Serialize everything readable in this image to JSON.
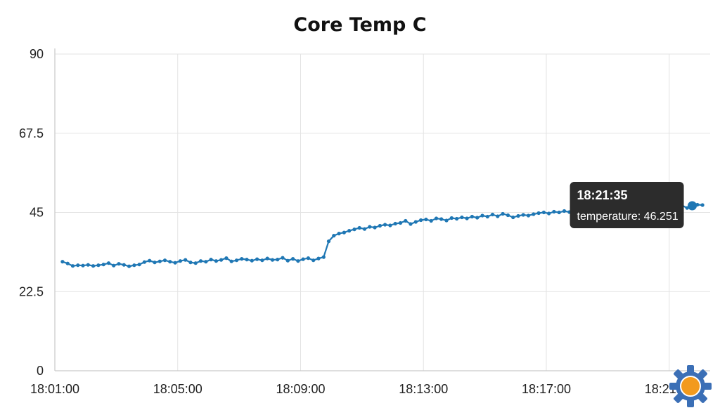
{
  "chart_data": {
    "type": "line",
    "title": "Core Temp C",
    "xlabel": "",
    "ylabel": "",
    "x_ticks": [
      "18:01:00",
      "18:05:00",
      "18:09:00",
      "18:13:00",
      "18:17:00",
      "18:21:00"
    ],
    "y_ticks": [
      "0",
      "22.5",
      "45",
      "67.5",
      "90"
    ],
    "xlim": [
      "18:01:00",
      "18:22:20"
    ],
    "ylim": [
      0,
      90
    ],
    "grid": true,
    "series_color": "#1f77b4",
    "series": [
      {
        "points": [
          [
            "18:01:15",
            31.0
          ],
          [
            "18:01:25",
            30.5
          ],
          [
            "18:01:35",
            29.8
          ],
          [
            "18:01:45",
            30.0
          ],
          [
            "18:01:55",
            29.9
          ],
          [
            "18:02:05",
            30.1
          ],
          [
            "18:02:15",
            29.8
          ],
          [
            "18:02:25",
            30.0
          ],
          [
            "18:02:35",
            30.2
          ],
          [
            "18:02:45",
            30.6
          ],
          [
            "18:02:55",
            29.9
          ],
          [
            "18:03:05",
            30.4
          ],
          [
            "18:03:15",
            30.1
          ],
          [
            "18:03:25",
            29.7
          ],
          [
            "18:03:35",
            30.0
          ],
          [
            "18:03:45",
            30.2
          ],
          [
            "18:03:55",
            30.9
          ],
          [
            "18:04:05",
            31.3
          ],
          [
            "18:04:15",
            30.8
          ],
          [
            "18:04:25",
            31.1
          ],
          [
            "18:04:35",
            31.4
          ],
          [
            "18:04:45",
            31.0
          ],
          [
            "18:04:55",
            30.7
          ],
          [
            "18:05:05",
            31.2
          ],
          [
            "18:05:15",
            31.5
          ],
          [
            "18:05:25",
            30.8
          ],
          [
            "18:05:35",
            30.6
          ],
          [
            "18:05:45",
            31.2
          ],
          [
            "18:05:55",
            31.0
          ],
          [
            "18:06:05",
            31.6
          ],
          [
            "18:06:15",
            31.2
          ],
          [
            "18:06:25",
            31.5
          ],
          [
            "18:06:35",
            32.0
          ],
          [
            "18:06:45",
            31.1
          ],
          [
            "18:06:55",
            31.4
          ],
          [
            "18:07:05",
            31.8
          ],
          [
            "18:07:15",
            31.6
          ],
          [
            "18:07:25",
            31.3
          ],
          [
            "18:07:35",
            31.7
          ],
          [
            "18:07:45",
            31.4
          ],
          [
            "18:07:55",
            31.9
          ],
          [
            "18:08:05",
            31.5
          ],
          [
            "18:08:15",
            31.6
          ],
          [
            "18:08:25",
            32.1
          ],
          [
            "18:08:35",
            31.3
          ],
          [
            "18:08:45",
            31.8
          ],
          [
            "18:08:55",
            31.2
          ],
          [
            "18:09:05",
            31.7
          ],
          [
            "18:09:15",
            32.0
          ],
          [
            "18:09:25",
            31.4
          ],
          [
            "18:09:35",
            31.9
          ],
          [
            "18:09:45",
            32.3
          ],
          [
            "18:09:55",
            36.8
          ],
          [
            "18:10:05",
            38.4
          ],
          [
            "18:10:15",
            39.0
          ],
          [
            "18:10:25",
            39.3
          ],
          [
            "18:10:35",
            39.8
          ],
          [
            "18:10:45",
            40.2
          ],
          [
            "18:10:55",
            40.6
          ],
          [
            "18:11:05",
            40.3
          ],
          [
            "18:11:15",
            40.9
          ],
          [
            "18:11:25",
            40.7
          ],
          [
            "18:11:35",
            41.2
          ],
          [
            "18:11:45",
            41.5
          ],
          [
            "18:11:55",
            41.3
          ],
          [
            "18:12:05",
            41.8
          ],
          [
            "18:12:15",
            42.0
          ],
          [
            "18:12:25",
            42.6
          ],
          [
            "18:12:35",
            41.7
          ],
          [
            "18:12:45",
            42.3
          ],
          [
            "18:12:55",
            42.8
          ],
          [
            "18:13:05",
            43.0
          ],
          [
            "18:13:15",
            42.6
          ],
          [
            "18:13:25",
            43.3
          ],
          [
            "18:13:35",
            43.1
          ],
          [
            "18:13:45",
            42.7
          ],
          [
            "18:13:55",
            43.4
          ],
          [
            "18:14:05",
            43.2
          ],
          [
            "18:14:15",
            43.6
          ],
          [
            "18:14:25",
            43.3
          ],
          [
            "18:14:35",
            43.8
          ],
          [
            "18:14:45",
            43.5
          ],
          [
            "18:14:55",
            44.1
          ],
          [
            "18:15:05",
            43.8
          ],
          [
            "18:15:15",
            44.4
          ],
          [
            "18:15:25",
            43.9
          ],
          [
            "18:15:35",
            44.6
          ],
          [
            "18:15:45",
            44.2
          ],
          [
            "18:15:55",
            43.6
          ],
          [
            "18:16:05",
            44.0
          ],
          [
            "18:16:15",
            44.3
          ],
          [
            "18:16:25",
            44.1
          ],
          [
            "18:16:35",
            44.5
          ],
          [
            "18:16:45",
            44.8
          ],
          [
            "18:16:55",
            45.0
          ],
          [
            "18:17:05",
            44.7
          ],
          [
            "18:17:15",
            45.2
          ],
          [
            "18:17:25",
            45.0
          ],
          [
            "18:17:35",
            45.4
          ],
          [
            "18:17:45",
            45.1
          ],
          [
            "18:17:55",
            45.6
          ],
          [
            "18:18:05",
            45.3
          ],
          [
            "18:18:15",
            45.8
          ],
          [
            "18:18:25",
            45.5
          ],
          [
            "18:18:35",
            45.9
          ],
          [
            "18:18:45",
            45.6
          ],
          [
            "18:18:55",
            46.1
          ],
          [
            "18:19:05",
            45.8
          ],
          [
            "18:19:15",
            45.4
          ],
          [
            "18:19:25",
            46.0
          ],
          [
            "18:19:35",
            46.3
          ],
          [
            "18:19:45",
            46.0
          ],
          [
            "18:19:55",
            46.5
          ],
          [
            "18:20:05",
            46.2
          ],
          [
            "18:20:15",
            46.7
          ],
          [
            "18:20:25",
            46.4
          ],
          [
            "18:20:35",
            46.9
          ],
          [
            "18:20:45",
            46.6
          ],
          [
            "18:20:55",
            46.2
          ],
          [
            "18:21:05",
            46.8
          ],
          [
            "18:21:15",
            46.5
          ],
          [
            "18:21:25",
            47.0
          ],
          [
            "18:21:35",
            46.251
          ],
          [
            "18:21:45",
            46.9
          ],
          [
            "18:21:55",
            47.2
          ],
          [
            "18:22:05",
            47.1
          ]
        ]
      }
    ],
    "tooltip": {
      "time": "18:21:35",
      "label": "temperature: 46.251",
      "point_index": 123
    }
  },
  "widget": {
    "icon": "gear-icon",
    "outer_color": "#3b6fb6",
    "inner_color": "#f29a1d"
  }
}
